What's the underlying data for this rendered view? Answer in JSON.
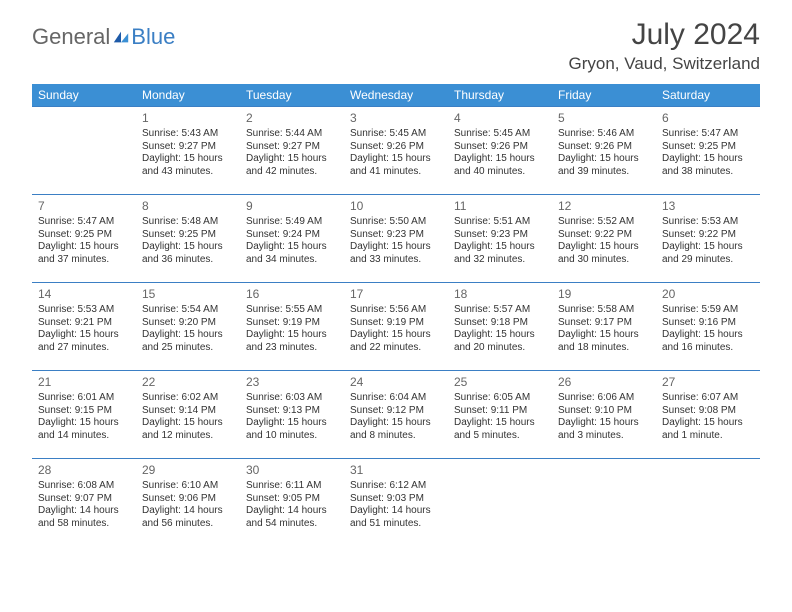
{
  "logo": {
    "text1": "General",
    "text2": "Blue",
    "accent": "#3b8fd4"
  },
  "title": "July 2024",
  "location": "Gryon, Vaud, Switzerland",
  "header_bg": "#3b8fd4",
  "header_fg": "#ffffff",
  "border_color": "#3b7fc4",
  "weekdays": [
    "Sunday",
    "Monday",
    "Tuesday",
    "Wednesday",
    "Thursday",
    "Friday",
    "Saturday"
  ],
  "weeks": [
    [
      null,
      {
        "d": "1",
        "sr": "5:43 AM",
        "ss": "9:27 PM",
        "dl": "15 hours and 43 minutes."
      },
      {
        "d": "2",
        "sr": "5:44 AM",
        "ss": "9:27 PM",
        "dl": "15 hours and 42 minutes."
      },
      {
        "d": "3",
        "sr": "5:45 AM",
        "ss": "9:26 PM",
        "dl": "15 hours and 41 minutes."
      },
      {
        "d": "4",
        "sr": "5:45 AM",
        "ss": "9:26 PM",
        "dl": "15 hours and 40 minutes."
      },
      {
        "d": "5",
        "sr": "5:46 AM",
        "ss": "9:26 PM",
        "dl": "15 hours and 39 minutes."
      },
      {
        "d": "6",
        "sr": "5:47 AM",
        "ss": "9:25 PM",
        "dl": "15 hours and 38 minutes."
      }
    ],
    [
      {
        "d": "7",
        "sr": "5:47 AM",
        "ss": "9:25 PM",
        "dl": "15 hours and 37 minutes."
      },
      {
        "d": "8",
        "sr": "5:48 AM",
        "ss": "9:25 PM",
        "dl": "15 hours and 36 minutes."
      },
      {
        "d": "9",
        "sr": "5:49 AM",
        "ss": "9:24 PM",
        "dl": "15 hours and 34 minutes."
      },
      {
        "d": "10",
        "sr": "5:50 AM",
        "ss": "9:23 PM",
        "dl": "15 hours and 33 minutes."
      },
      {
        "d": "11",
        "sr": "5:51 AM",
        "ss": "9:23 PM",
        "dl": "15 hours and 32 minutes."
      },
      {
        "d": "12",
        "sr": "5:52 AM",
        "ss": "9:22 PM",
        "dl": "15 hours and 30 minutes."
      },
      {
        "d": "13",
        "sr": "5:53 AM",
        "ss": "9:22 PM",
        "dl": "15 hours and 29 minutes."
      }
    ],
    [
      {
        "d": "14",
        "sr": "5:53 AM",
        "ss": "9:21 PM",
        "dl": "15 hours and 27 minutes."
      },
      {
        "d": "15",
        "sr": "5:54 AM",
        "ss": "9:20 PM",
        "dl": "15 hours and 25 minutes."
      },
      {
        "d": "16",
        "sr": "5:55 AM",
        "ss": "9:19 PM",
        "dl": "15 hours and 23 minutes."
      },
      {
        "d": "17",
        "sr": "5:56 AM",
        "ss": "9:19 PM",
        "dl": "15 hours and 22 minutes."
      },
      {
        "d": "18",
        "sr": "5:57 AM",
        "ss": "9:18 PM",
        "dl": "15 hours and 20 minutes."
      },
      {
        "d": "19",
        "sr": "5:58 AM",
        "ss": "9:17 PM",
        "dl": "15 hours and 18 minutes."
      },
      {
        "d": "20",
        "sr": "5:59 AM",
        "ss": "9:16 PM",
        "dl": "15 hours and 16 minutes."
      }
    ],
    [
      {
        "d": "21",
        "sr": "6:01 AM",
        "ss": "9:15 PM",
        "dl": "15 hours and 14 minutes."
      },
      {
        "d": "22",
        "sr": "6:02 AM",
        "ss": "9:14 PM",
        "dl": "15 hours and 12 minutes."
      },
      {
        "d": "23",
        "sr": "6:03 AM",
        "ss": "9:13 PM",
        "dl": "15 hours and 10 minutes."
      },
      {
        "d": "24",
        "sr": "6:04 AM",
        "ss": "9:12 PM",
        "dl": "15 hours and 8 minutes."
      },
      {
        "d": "25",
        "sr": "6:05 AM",
        "ss": "9:11 PM",
        "dl": "15 hours and 5 minutes."
      },
      {
        "d": "26",
        "sr": "6:06 AM",
        "ss": "9:10 PM",
        "dl": "15 hours and 3 minutes."
      },
      {
        "d": "27",
        "sr": "6:07 AM",
        "ss": "9:08 PM",
        "dl": "15 hours and 1 minute."
      }
    ],
    [
      {
        "d": "28",
        "sr": "6:08 AM",
        "ss": "9:07 PM",
        "dl": "14 hours and 58 minutes."
      },
      {
        "d": "29",
        "sr": "6:10 AM",
        "ss": "9:06 PM",
        "dl": "14 hours and 56 minutes."
      },
      {
        "d": "30",
        "sr": "6:11 AM",
        "ss": "9:05 PM",
        "dl": "14 hours and 54 minutes."
      },
      {
        "d": "31",
        "sr": "6:12 AM",
        "ss": "9:03 PM",
        "dl": "14 hours and 51 minutes."
      },
      null,
      null,
      null
    ]
  ],
  "labels": {
    "sunrise": "Sunrise:",
    "sunset": "Sunset:",
    "daylight": "Daylight:"
  }
}
